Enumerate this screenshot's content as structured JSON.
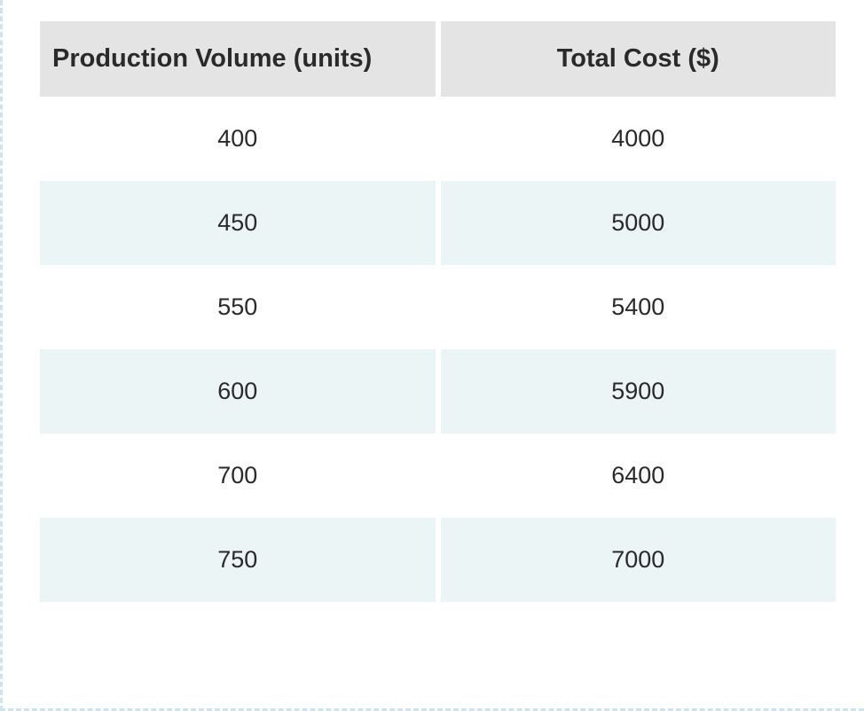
{
  "table": {
    "columns": [
      "Production Volume (units)",
      "Total Cost ($)"
    ],
    "rows": [
      [
        "400",
        "4000"
      ],
      [
        "450",
        "5000"
      ],
      [
        "550",
        "5400"
      ],
      [
        "600",
        "5900"
      ],
      [
        "700",
        "6400"
      ],
      [
        "750",
        "7000"
      ]
    ],
    "header_bg": "#e4e4e4",
    "row_odd_bg": "#ffffff",
    "row_even_bg": "#ecf5f6",
    "text_color": "#2a2a2a",
    "header_fontsize": 29,
    "cell_fontsize": 27,
    "border_dash_color": "#cfe3ee"
  }
}
